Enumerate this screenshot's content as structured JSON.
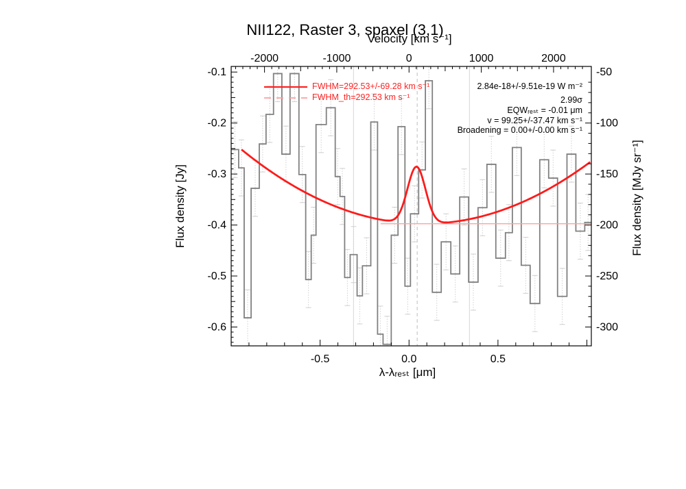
{
  "title": "NII122, Raster 3, spaxel (3,1)",
  "annotations": {
    "fwhm_label": "FWHM=292.53+/-69.28 km s⁻¹",
    "fwhm_th_label": "FWHM_th=292.53 km s⁻¹",
    "line_flux_label": "2.84e-18+/-9.51e-19 W m⁻²",
    "significance_label": "2.99σ",
    "eqw_label": "EQWᵣₑₛₜ = -0.01 μm",
    "velocity_fit_label": "v = 99.25+/-37.47 km s⁻¹",
    "broadening_label": "Broadening = 0.00+/-0.00 km s⁻¹"
  },
  "axes": {
    "top": {
      "label": "Velocity [km s⁻¹]",
      "tick_labels": [
        "-2000",
        "-1000",
        "0",
        "1000",
        "2000"
      ],
      "tick_values": [
        -2000,
        -1000,
        0,
        1000,
        2000
      ]
    },
    "bottom": {
      "label": "λ-λᵣₑₛₜ [μm]",
      "tick_labels": [
        "-0.5",
        "0.0",
        "0.5"
      ],
      "tick_values": [
        -0.5,
        0.0,
        0.5
      ]
    },
    "left": {
      "label": "Flux density [Jy]",
      "tick_labels": [
        "-0.1",
        "-0.2",
        "-0.3",
        "-0.4",
        "-0.5",
        "-0.6"
      ],
      "tick_values": [
        -0.1,
        -0.2,
        -0.3,
        -0.4,
        -0.5,
        -0.6
      ]
    },
    "right": {
      "label": "Flux density [MJy sr⁻¹]",
      "tick_labels": [
        "-50",
        "-100",
        "-150",
        "-200",
        "-250",
        "-300"
      ],
      "tick_values": [
        -50,
        -100,
        -150,
        -200,
        -250,
        -300
      ]
    }
  },
  "chart_data": {
    "type": "line",
    "title": "NII122, Raster 3, spaxel (3,1)",
    "xlabel": "λ-λᵣₑₛₜ [μm]",
    "ylabel": "Flux density [Jy]",
    "ylabel_right": "Flux density [MJy sr⁻¹]",
    "xlim": [
      -1.0,
      1.025
    ],
    "ylim": [
      -0.637,
      -0.089
    ],
    "jy_to_mjysr": 500,
    "um_per_kms": 0.0004063,
    "histogram_color": "#808080",
    "fit_color": "#ff1a1a",
    "continuum_color": "#ffa0a0",
    "errorbar_color": "#cfcfcf",
    "histogram_steps": [
      [
        -1.0,
        -0.252
      ],
      [
        -0.958,
        -0.288
      ],
      [
        -0.927,
        -0.582
      ],
      [
        -0.888,
        -0.328
      ],
      [
        -0.842,
        -0.241
      ],
      [
        -0.804,
        -0.183
      ],
      [
        -0.762,
        -0.103
      ],
      [
        -0.715,
        -0.261
      ],
      [
        -0.669,
        -0.103
      ],
      [
        -0.619,
        -0.301
      ],
      [
        -0.581,
        -0.507
      ],
      [
        -0.55,
        -0.42
      ],
      [
        -0.523,
        -0.203
      ],
      [
        -0.465,
        -0.17
      ],
      [
        -0.415,
        -0.305
      ],
      [
        -0.388,
        -0.344
      ],
      [
        -0.362,
        -0.503
      ],
      [
        -0.331,
        -0.458
      ],
      [
        -0.292,
        -0.539
      ],
      [
        -0.262,
        -0.48
      ],
      [
        -0.215,
        -0.198
      ],
      [
        -0.177,
        -0.614
      ],
      [
        -0.146,
        -0.634
      ],
      [
        -0.1,
        -0.42
      ],
      [
        -0.062,
        -0.207
      ],
      [
        -0.023,
        -0.52
      ],
      [
        0.008,
        -0.378
      ],
      [
        0.054,
        -0.292
      ],
      [
        0.092,
        -0.117
      ],
      [
        0.131,
        -0.532
      ],
      [
        0.181,
        -0.433
      ],
      [
        0.235,
        -0.496
      ],
      [
        0.285,
        -0.345
      ],
      [
        0.335,
        -0.512
      ],
      [
        0.388,
        -0.366
      ],
      [
        0.438,
        -0.281
      ],
      [
        0.488,
        -0.465
      ],
      [
        0.542,
        -0.415
      ],
      [
        0.581,
        -0.248
      ],
      [
        0.631,
        -0.479
      ],
      [
        0.681,
        -0.554
      ],
      [
        0.735,
        -0.272
      ],
      [
        0.785,
        -0.308
      ],
      [
        0.835,
        -0.54
      ],
      [
        0.888,
        -0.261
      ],
      [
        0.938,
        -0.412
      ],
      [
        0.988,
        -0.395
      ]
    ],
    "histogram_x_end": 1.025,
    "yerr": 0.055,
    "fit": {
      "continuum_poly": [
        -0.3967,
        -0.0231,
        0.1386
      ],
      "gaussian": {
        "amplitude": 0.112,
        "center": 0.042,
        "sigma": 0.0505
      },
      "x_start": -0.942,
      "x_end": 1.024
    },
    "continuum_line": {
      "y": -0.3975,
      "x_start": -0.16,
      "x_end": 1.024
    },
    "ref_lines": {
      "solid_x": [
        -0.312,
        0.34
      ],
      "dashed_x": [
        0.046
      ]
    },
    "legend_position": "top-left-inside",
    "grid": false
  }
}
